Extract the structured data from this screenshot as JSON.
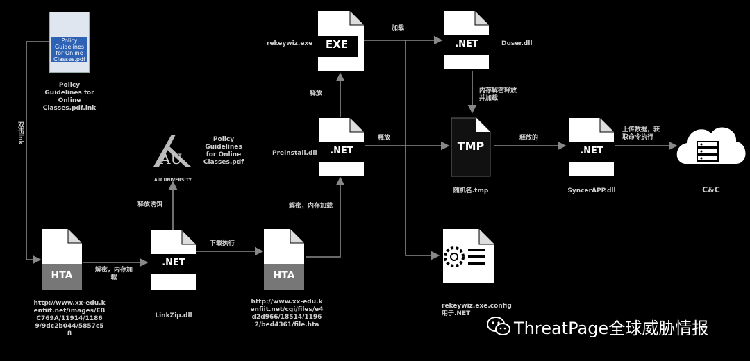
{
  "pdf_icon_text": "Policy Guidelines for Online Classes.pdf",
  "pdf_icon_caption": "Policy Guidelines for Online Classes.pdf.lnk",
  "lnk_arrow_label": "双击lnk",
  "hta1_icon": "HTA",
  "hta1_url": "http://www.xx-edu.kenfiit.net/images/EBC769A/11914/11869/9dc2b044/5857c58",
  "hta1_arrow_label": "解密，内存加载",
  "linkzip_icon": ".NET",
  "linkzip_caption": "LinkZip.dll",
  "decoy_arrow_label": "释放诱饵",
  "au_caption": "AIR UNIVERSITY",
  "decoy_pdf_caption": "Policy Guidelines for Online Classes.pdf",
  "download_label": "下载执行",
  "hta2_icon": "HTA",
  "hta2_url": "http://www.xx-edu.kenfiit.net/cgi/files/e4d2d966/18514/11962/bed4361/file.hta",
  "hta2_arrow_label": "解密，内存加载",
  "pre_dll_caption": "Preinstall.dll",
  "pre_dll_icon": ".NET",
  "release_label": "释放",
  "exe_caption": "rekeywiz.exe",
  "exe_icon": "EXE",
  "load_label": "加载",
  "duser_icon": ".NET",
  "duser_caption": "Duser.dll",
  "mem_label": "内存解密释放\n并加载",
  "tmp_icon": "TMP",
  "tmp_caption": "随机名.tmp",
  "release2_label": "释放的",
  "syncer_icon": ".NET",
  "syncer_caption": "SyncerAPP.dll",
  "upload_label": "上传数据，获\n取命令执行",
  "cc_caption": "C&C",
  "config_caption": "rekeywiz.exe.config\n用于.NET",
  "watermark_text": "ThreatPage全球威胁情报"
}
